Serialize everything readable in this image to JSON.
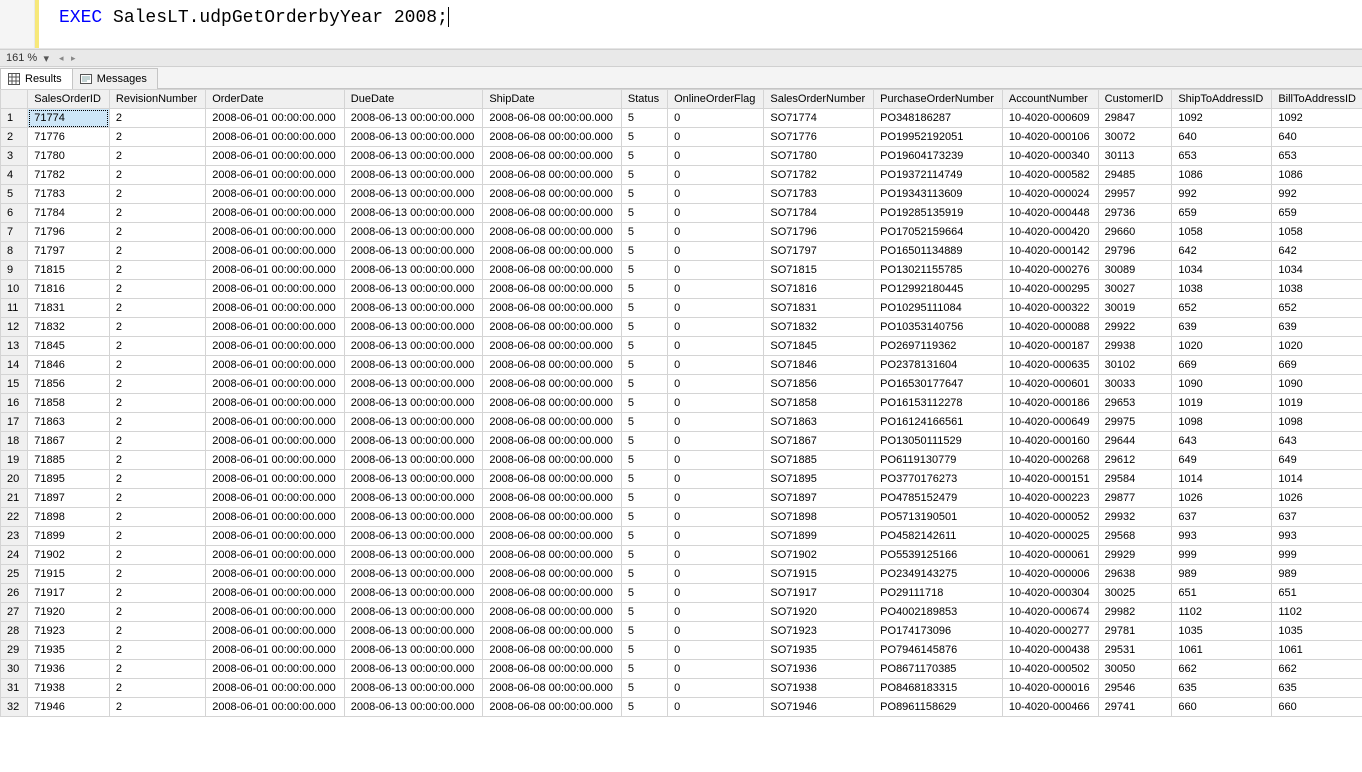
{
  "editor": {
    "keyword": "EXEC",
    "rest": " SalesLT.udpGetOrderbyYear 2008;"
  },
  "zoom": {
    "value": "161 %"
  },
  "tabs": {
    "results": "Results",
    "messages": "Messages"
  },
  "columns": [
    "SalesOrderID",
    "RevisionNumber",
    "OrderDate",
    "DueDate",
    "ShipDate",
    "Status",
    "OnlineOrderFlag",
    "SalesOrderNumber",
    "PurchaseOrderNumber",
    "AccountNumber",
    "CustomerID",
    "ShipToAddressID",
    "BillToAddressID"
  ],
  "rows": [
    [
      "71774",
      "2",
      "2008-06-01 00:00:00.000",
      "2008-06-13 00:00:00.000",
      "2008-06-08 00:00:00.000",
      "5",
      "0",
      "SO71774",
      "PO348186287",
      "10-4020-000609",
      "29847",
      "1092",
      "1092"
    ],
    [
      "71776",
      "2",
      "2008-06-01 00:00:00.000",
      "2008-06-13 00:00:00.000",
      "2008-06-08 00:00:00.000",
      "5",
      "0",
      "SO71776",
      "PO19952192051",
      "10-4020-000106",
      "30072",
      "640",
      "640"
    ],
    [
      "71780",
      "2",
      "2008-06-01 00:00:00.000",
      "2008-06-13 00:00:00.000",
      "2008-06-08 00:00:00.000",
      "5",
      "0",
      "SO71780",
      "PO19604173239",
      "10-4020-000340",
      "30113",
      "653",
      "653"
    ],
    [
      "71782",
      "2",
      "2008-06-01 00:00:00.000",
      "2008-06-13 00:00:00.000",
      "2008-06-08 00:00:00.000",
      "5",
      "0",
      "SO71782",
      "PO19372114749",
      "10-4020-000582",
      "29485",
      "1086",
      "1086"
    ],
    [
      "71783",
      "2",
      "2008-06-01 00:00:00.000",
      "2008-06-13 00:00:00.000",
      "2008-06-08 00:00:00.000",
      "5",
      "0",
      "SO71783",
      "PO19343113609",
      "10-4020-000024",
      "29957",
      "992",
      "992"
    ],
    [
      "71784",
      "2",
      "2008-06-01 00:00:00.000",
      "2008-06-13 00:00:00.000",
      "2008-06-08 00:00:00.000",
      "5",
      "0",
      "SO71784",
      "PO19285135919",
      "10-4020-000448",
      "29736",
      "659",
      "659"
    ],
    [
      "71796",
      "2",
      "2008-06-01 00:00:00.000",
      "2008-06-13 00:00:00.000",
      "2008-06-08 00:00:00.000",
      "5",
      "0",
      "SO71796",
      "PO17052159664",
      "10-4020-000420",
      "29660",
      "1058",
      "1058"
    ],
    [
      "71797",
      "2",
      "2008-06-01 00:00:00.000",
      "2008-06-13 00:00:00.000",
      "2008-06-08 00:00:00.000",
      "5",
      "0",
      "SO71797",
      "PO16501134889",
      "10-4020-000142",
      "29796",
      "642",
      "642"
    ],
    [
      "71815",
      "2",
      "2008-06-01 00:00:00.000",
      "2008-06-13 00:00:00.000",
      "2008-06-08 00:00:00.000",
      "5",
      "0",
      "SO71815",
      "PO13021155785",
      "10-4020-000276",
      "30089",
      "1034",
      "1034"
    ],
    [
      "71816",
      "2",
      "2008-06-01 00:00:00.000",
      "2008-06-13 00:00:00.000",
      "2008-06-08 00:00:00.000",
      "5",
      "0",
      "SO71816",
      "PO12992180445",
      "10-4020-000295",
      "30027",
      "1038",
      "1038"
    ],
    [
      "71831",
      "2",
      "2008-06-01 00:00:00.000",
      "2008-06-13 00:00:00.000",
      "2008-06-08 00:00:00.000",
      "5",
      "0",
      "SO71831",
      "PO10295111084",
      "10-4020-000322",
      "30019",
      "652",
      "652"
    ],
    [
      "71832",
      "2",
      "2008-06-01 00:00:00.000",
      "2008-06-13 00:00:00.000",
      "2008-06-08 00:00:00.000",
      "5",
      "0",
      "SO71832",
      "PO10353140756",
      "10-4020-000088",
      "29922",
      "639",
      "639"
    ],
    [
      "71845",
      "2",
      "2008-06-01 00:00:00.000",
      "2008-06-13 00:00:00.000",
      "2008-06-08 00:00:00.000",
      "5",
      "0",
      "SO71845",
      "PO2697119362",
      "10-4020-000187",
      "29938",
      "1020",
      "1020"
    ],
    [
      "71846",
      "2",
      "2008-06-01 00:00:00.000",
      "2008-06-13 00:00:00.000",
      "2008-06-08 00:00:00.000",
      "5",
      "0",
      "SO71846",
      "PO2378131604",
      "10-4020-000635",
      "30102",
      "669",
      "669"
    ],
    [
      "71856",
      "2",
      "2008-06-01 00:00:00.000",
      "2008-06-13 00:00:00.000",
      "2008-06-08 00:00:00.000",
      "5",
      "0",
      "SO71856",
      "PO16530177647",
      "10-4020-000601",
      "30033",
      "1090",
      "1090"
    ],
    [
      "71858",
      "2",
      "2008-06-01 00:00:00.000",
      "2008-06-13 00:00:00.000",
      "2008-06-08 00:00:00.000",
      "5",
      "0",
      "SO71858",
      "PO16153112278",
      "10-4020-000186",
      "29653",
      "1019",
      "1019"
    ],
    [
      "71863",
      "2",
      "2008-06-01 00:00:00.000",
      "2008-06-13 00:00:00.000",
      "2008-06-08 00:00:00.000",
      "5",
      "0",
      "SO71863",
      "PO16124166561",
      "10-4020-000649",
      "29975",
      "1098",
      "1098"
    ],
    [
      "71867",
      "2",
      "2008-06-01 00:00:00.000",
      "2008-06-13 00:00:00.000",
      "2008-06-08 00:00:00.000",
      "5",
      "0",
      "SO71867",
      "PO13050111529",
      "10-4020-000160",
      "29644",
      "643",
      "643"
    ],
    [
      "71885",
      "2",
      "2008-06-01 00:00:00.000",
      "2008-06-13 00:00:00.000",
      "2008-06-08 00:00:00.000",
      "5",
      "0",
      "SO71885",
      "PO6119130779",
      "10-4020-000268",
      "29612",
      "649",
      "649"
    ],
    [
      "71895",
      "2",
      "2008-06-01 00:00:00.000",
      "2008-06-13 00:00:00.000",
      "2008-06-08 00:00:00.000",
      "5",
      "0",
      "SO71895",
      "PO3770176273",
      "10-4020-000151",
      "29584",
      "1014",
      "1014"
    ],
    [
      "71897",
      "2",
      "2008-06-01 00:00:00.000",
      "2008-06-13 00:00:00.000",
      "2008-06-08 00:00:00.000",
      "5",
      "0",
      "SO71897",
      "PO4785152479",
      "10-4020-000223",
      "29877",
      "1026",
      "1026"
    ],
    [
      "71898",
      "2",
      "2008-06-01 00:00:00.000",
      "2008-06-13 00:00:00.000",
      "2008-06-08 00:00:00.000",
      "5",
      "0",
      "SO71898",
      "PO5713190501",
      "10-4020-000052",
      "29932",
      "637",
      "637"
    ],
    [
      "71899",
      "2",
      "2008-06-01 00:00:00.000",
      "2008-06-13 00:00:00.000",
      "2008-06-08 00:00:00.000",
      "5",
      "0",
      "SO71899",
      "PO4582142611",
      "10-4020-000025",
      "29568",
      "993",
      "993"
    ],
    [
      "71902",
      "2",
      "2008-06-01 00:00:00.000",
      "2008-06-13 00:00:00.000",
      "2008-06-08 00:00:00.000",
      "5",
      "0",
      "SO71902",
      "PO5539125166",
      "10-4020-000061",
      "29929",
      "999",
      "999"
    ],
    [
      "71915",
      "2",
      "2008-06-01 00:00:00.000",
      "2008-06-13 00:00:00.000",
      "2008-06-08 00:00:00.000",
      "5",
      "0",
      "SO71915",
      "PO2349143275",
      "10-4020-000006",
      "29638",
      "989",
      "989"
    ],
    [
      "71917",
      "2",
      "2008-06-01 00:00:00.000",
      "2008-06-13 00:00:00.000",
      "2008-06-08 00:00:00.000",
      "5",
      "0",
      "SO71917",
      "PO29111718",
      "10-4020-000304",
      "30025",
      "651",
      "651"
    ],
    [
      "71920",
      "2",
      "2008-06-01 00:00:00.000",
      "2008-06-13 00:00:00.000",
      "2008-06-08 00:00:00.000",
      "5",
      "0",
      "SO71920",
      "PO4002189853",
      "10-4020-000674",
      "29982",
      "1102",
      "1102"
    ],
    [
      "71923",
      "2",
      "2008-06-01 00:00:00.000",
      "2008-06-13 00:00:00.000",
      "2008-06-08 00:00:00.000",
      "5",
      "0",
      "SO71923",
      "PO174173096",
      "10-4020-000277",
      "29781",
      "1035",
      "1035"
    ],
    [
      "71935",
      "2",
      "2008-06-01 00:00:00.000",
      "2008-06-13 00:00:00.000",
      "2008-06-08 00:00:00.000",
      "5",
      "0",
      "SO71935",
      "PO7946145876",
      "10-4020-000438",
      "29531",
      "1061",
      "1061"
    ],
    [
      "71936",
      "2",
      "2008-06-01 00:00:00.000",
      "2008-06-13 00:00:00.000",
      "2008-06-08 00:00:00.000",
      "5",
      "0",
      "SO71936",
      "PO8671170385",
      "10-4020-000502",
      "30050",
      "662",
      "662"
    ],
    [
      "71938",
      "2",
      "2008-06-01 00:00:00.000",
      "2008-06-13 00:00:00.000",
      "2008-06-08 00:00:00.000",
      "5",
      "0",
      "SO71938",
      "PO8468183315",
      "10-4020-000016",
      "29546",
      "635",
      "635"
    ],
    [
      "71946",
      "2",
      "2008-06-01 00:00:00.000",
      "2008-06-13 00:00:00.000",
      "2008-06-08 00:00:00.000",
      "5",
      "0",
      "SO71946",
      "PO8961158629",
      "10-4020-000466",
      "29741",
      "660",
      "660"
    ]
  ],
  "colors": {
    "keyword": "#0000ff",
    "header_bg": "#f0f0f0",
    "grid_border": "#d4d4d4",
    "selected_bg": "#cde6f7"
  }
}
